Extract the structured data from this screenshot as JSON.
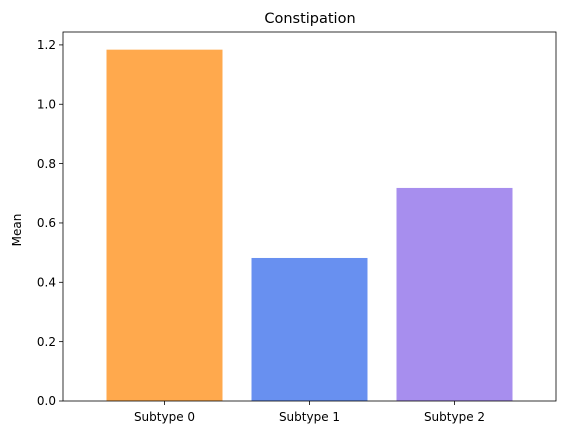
{
  "chart_data": {
    "type": "bar",
    "title": "Constipation",
    "xlabel": "",
    "ylabel": "Mean",
    "categories": [
      "Subtype 0",
      "Subtype 1",
      "Subtype 2"
    ],
    "values": [
      1.184,
      0.482,
      0.718
    ],
    "colors": [
      "#FFA94D",
      "#6890F0",
      "#A78EEE"
    ],
    "ylim": [
      0,
      1.2435
    ],
    "yticks": [
      "0.0",
      "0.2",
      "0.4",
      "0.6",
      "0.8",
      "1.0",
      "1.2"
    ],
    "grid": false,
    "legend": "none"
  }
}
